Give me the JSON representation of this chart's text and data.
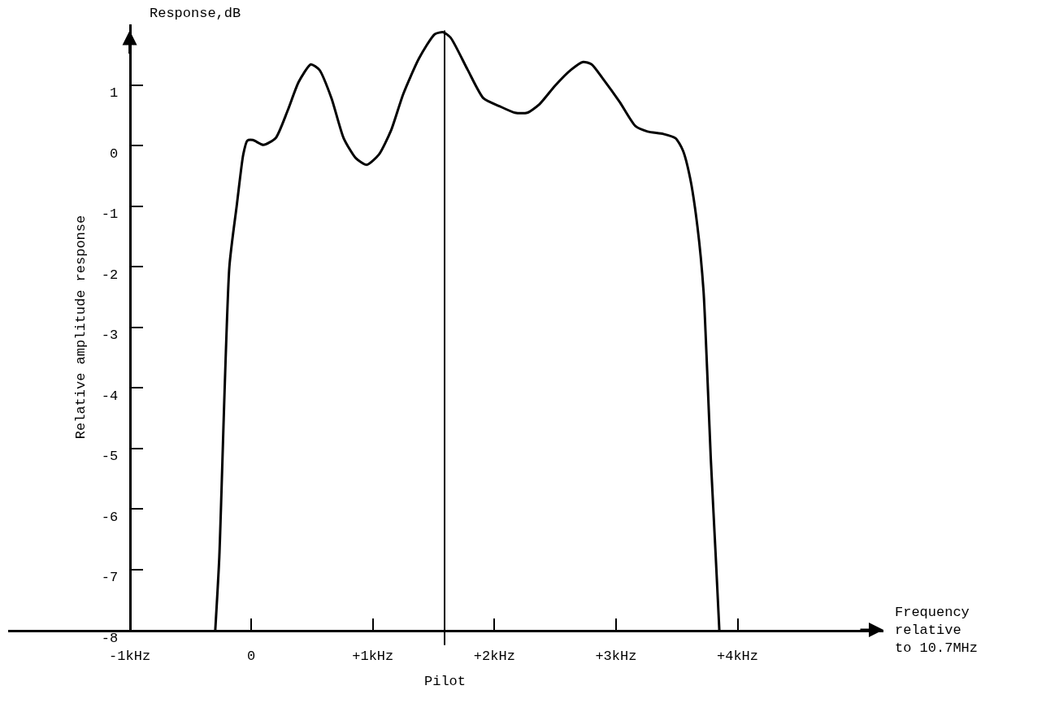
{
  "chart_data": {
    "type": "line",
    "ylabel": "Relative amplitude response",
    "xlabel": "Frequency\nrelative\nto 10.7MHz",
    "annotations": [
      "Response,dB"
    ],
    "x": [
      -0.296,
      -0.263,
      -0.18,
      -0.12,
      -0.066,
      -0.033,
      0.013,
      0.1,
      0.2,
      0.3,
      0.39,
      0.49,
      0.56,
      0.66,
      0.76,
      0.86,
      0.95,
      1.05,
      1.15,
      1.25,
      1.38,
      1.51,
      1.58,
      1.64,
      1.78,
      1.91,
      2.04,
      2.17,
      2.27,
      2.37,
      2.5,
      2.63,
      2.73,
      2.8,
      2.89,
      3.03,
      3.16,
      3.26,
      3.39,
      3.49,
      3.55,
      3.61,
      3.67,
      3.72,
      3.75,
      3.78,
      3.82,
      3.85
    ],
    "values": [
      -8,
      -6.8,
      -2,
      -1,
      -0.15,
      0.08,
      0.09,
      0.01,
      0.12,
      0.58,
      1.05,
      1.34,
      1.25,
      0.78,
      0.12,
      -0.21,
      -0.32,
      -0.15,
      0.25,
      0.85,
      1.44,
      1.84,
      1.87,
      1.78,
      1.25,
      0.78,
      0.65,
      0.54,
      0.54,
      0.68,
      0.99,
      1.25,
      1.38,
      1.34,
      1.11,
      0.72,
      0.32,
      0.23,
      0.19,
      0.12,
      -0.08,
      -0.54,
      -1.34,
      -2.4,
      -3.72,
      -5.18,
      -6.77,
      -8
    ],
    "color": "#000000",
    "xlim": [
      -2,
      5.2
    ],
    "ylim": [
      -8,
      2
    ],
    "xticks": [
      {
        "value": -1,
        "label": "-1kHz"
      },
      0,
      {
        "value": 1,
        "label": "+1kHz"
      },
      {
        "value": 2,
        "label": "+2kHz"
      },
      {
        "value": 3,
        "label": "+3kHz"
      },
      {
        "value": 4,
        "label": "+4kHz"
      }
    ],
    "yticks": [
      1,
      0,
      -1,
      -2,
      -3,
      -4,
      -5,
      -6,
      -7,
      -8
    ],
    "ref_lines": [
      {
        "axis": "x",
        "value": 1.59,
        "label": "Pilot",
        "color": "#000000"
      }
    ],
    "grid": false,
    "legend": false,
    "marker": "none",
    "line_style": "solid"
  }
}
